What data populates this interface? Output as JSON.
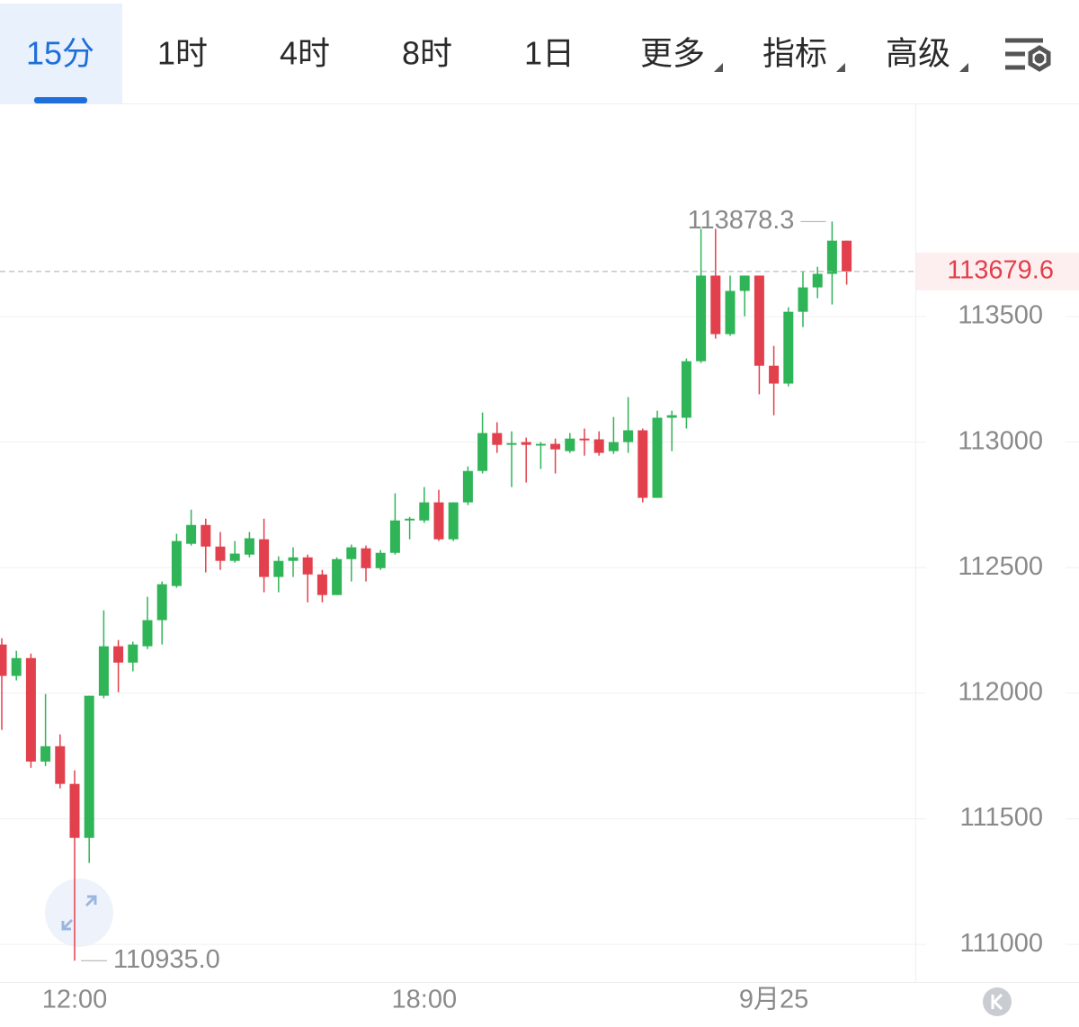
{
  "tabs": [
    "15分",
    "1时",
    "4时",
    "8时",
    "1日",
    "更多",
    "指标",
    "高级"
  ],
  "selected_tab": 0,
  "chart_data": {
    "type": "candlestick",
    "categories": [
      null,
      null,
      null,
      null,
      null,
      "12:00",
      null,
      null,
      null,
      null,
      null,
      null,
      null,
      null,
      null,
      null,
      null,
      null,
      null,
      null,
      null,
      null,
      null,
      null,
      null,
      null,
      null,
      null,
      null,
      "18:00",
      null,
      null,
      null,
      null,
      null,
      null,
      null,
      null,
      null,
      null,
      null,
      null,
      null,
      null,
      null,
      null,
      null,
      null,
      null,
      null,
      null,
      null,
      null,
      "9月25",
      null,
      null,
      null,
      null,
      null
    ],
    "open": [
      112194,
      112069,
      112140,
      111728,
      111789,
      111639,
      111424,
      111990,
      112187,
      112122,
      112187,
      112291,
      112427,
      112595,
      112670,
      112584,
      112527,
      112552,
      112613,
      112463,
      112527,
      112541,
      112473,
      112391,
      112534,
      112577,
      112498,
      112559,
      112688,
      112688,
      112760,
      112613,
      112760,
      112885,
      113036,
      112989,
      113000,
      112986,
      112993,
      112964,
      113014,
      113011,
      112964,
      113000,
      113047,
      112778,
      113097,
      113097,
      113322,
      113663,
      113430,
      113602,
      113663,
      113304,
      113233,
      113519,
      113616,
      113670,
      113802
    ],
    "high": [
      112219,
      112169,
      112158,
      111997,
      111836,
      111693,
      111990,
      112330,
      112212,
      112205,
      112384,
      112445,
      112635,
      112731,
      112695,
      112642,
      112606,
      112642,
      112695,
      112545,
      112581,
      112552,
      112491,
      112541,
      112592,
      112588,
      112570,
      112796,
      112702,
      112821,
      112810,
      112760,
      112903,
      113118,
      113079,
      113043,
      113018,
      113000,
      113014,
      113036,
      113054,
      113043,
      113100,
      113179,
      113054,
      113125,
      113125,
      113333,
      113849,
      113849,
      113663,
      113663,
      113663,
      113383,
      113537,
      113681,
      113698,
      113878.3,
      113802
    ],
    "low": [
      111854,
      112051,
      111703,
      111710,
      111621,
      110935,
      111324,
      111980,
      112004,
      112087,
      112176,
      112194,
      112420,
      112588,
      112481,
      112491,
      112520,
      112541,
      112402,
      112402,
      112463,
      112362,
      112362,
      112391,
      112445,
      112445,
      112491,
      112552,
      112613,
      112678,
      112606,
      112606,
      112749,
      112875,
      112957,
      112821,
      112839,
      112893,
      112875,
      112957,
      112946,
      112946,
      112953,
      112957,
      112760,
      112778,
      112964,
      113054,
      113315,
      113412,
      113423,
      113501,
      113190,
      113107,
      113222,
      113458,
      113573,
      113548,
      113627
    ],
    "close": [
      112069,
      112140,
      111728,
      111789,
      111639,
      111424,
      111990,
      112187,
      112122,
      112194,
      112291,
      112434,
      112606,
      112670,
      112584,
      112527,
      112556,
      112617,
      112463,
      112527,
      112541,
      112473,
      112391,
      112534,
      112581,
      112498,
      112559,
      112688,
      112695,
      112760,
      112613,
      112760,
      112885,
      113036,
      112989,
      112996,
      112989,
      112993,
      112971,
      113014,
      113007,
      112957,
      113000,
      113047,
      112778,
      113097,
      113107,
      113322,
      113663,
      113430,
      113602,
      113663,
      113304,
      113233,
      113519,
      113616,
      113670,
      113802,
      113679.6
    ],
    "up_color": "#2fb457",
    "down_color": "#e2404c",
    "high_label": "113878.3",
    "low_label": "110935.0",
    "last_price_label": "113679.6",
    "ylim": [
      110850,
      114345
    ],
    "yticks": [
      111000,
      111500,
      112000,
      112500,
      113000,
      113500
    ],
    "grid": true
  }
}
